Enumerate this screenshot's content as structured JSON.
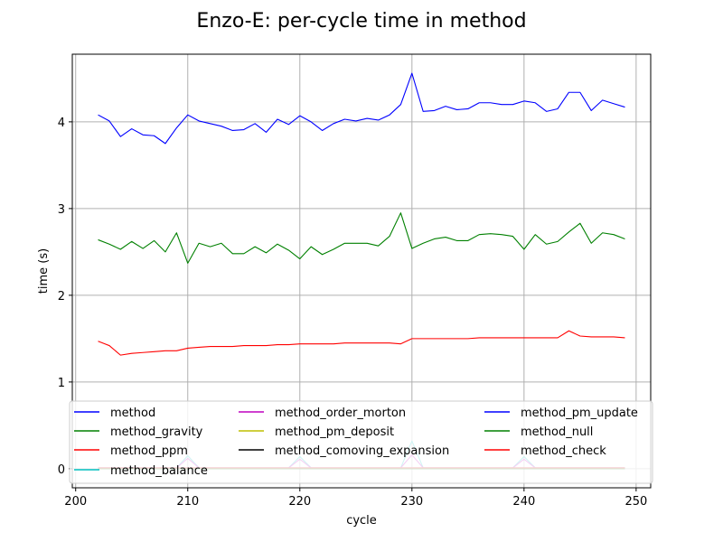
{
  "chart_data": {
    "type": "line",
    "title": "Enzo-E: per-cycle time in method",
    "xlabel": "cycle",
    "ylabel": "time (s)",
    "xlim": [
      199.7,
      251.3
    ],
    "ylim": [
      -0.22,
      4.78
    ],
    "xticks": [
      200,
      210,
      220,
      230,
      240,
      250
    ],
    "yticks": [
      0,
      1,
      2,
      3,
      4
    ],
    "grid": true,
    "legend": {
      "placement": "lower-center",
      "columns": 3
    },
    "x": [
      202,
      203,
      204,
      205,
      206,
      207,
      208,
      209,
      210,
      211,
      212,
      213,
      214,
      215,
      216,
      217,
      218,
      219,
      220,
      221,
      222,
      223,
      224,
      225,
      226,
      227,
      228,
      229,
      230,
      231,
      232,
      233,
      234,
      235,
      236,
      237,
      238,
      239,
      240,
      241,
      242,
      243,
      244,
      245,
      246,
      247,
      248,
      249
    ],
    "series": [
      {
        "name": "method",
        "color": "#0000ff",
        "values": [
          4.08,
          4.01,
          3.83,
          3.92,
          3.85,
          3.84,
          3.75,
          3.93,
          4.08,
          4.01,
          3.98,
          3.95,
          3.9,
          3.91,
          3.98,
          3.88,
          4.03,
          3.97,
          4.07,
          4.0,
          3.9,
          3.98,
          4.03,
          4.01,
          4.04,
          4.02,
          4.08,
          4.2,
          4.56,
          4.12,
          4.13,
          4.18,
          4.14,
          4.15,
          4.22,
          4.22,
          4.2,
          4.2,
          4.24,
          4.22,
          4.12,
          4.15,
          4.34,
          4.34,
          4.13,
          4.25,
          4.21,
          4.17
        ]
      },
      {
        "name": "method_gravity",
        "color": "#008000",
        "values": [
          2.64,
          2.59,
          2.53,
          2.62,
          2.54,
          2.63,
          2.5,
          2.72,
          2.37,
          2.6,
          2.56,
          2.6,
          2.48,
          2.48,
          2.56,
          2.49,
          2.59,
          2.52,
          2.42,
          2.56,
          2.47,
          2.53,
          2.6,
          2.6,
          2.6,
          2.57,
          2.68,
          2.95,
          2.54,
          2.6,
          2.65,
          2.67,
          2.63,
          2.63,
          2.7,
          2.71,
          2.7,
          2.68,
          2.53,
          2.7,
          2.59,
          2.62,
          2.73,
          2.83,
          2.6,
          2.72,
          2.7,
          2.65
        ]
      },
      {
        "name": "method_ppm",
        "color": "#ff0000",
        "values": [
          1.47,
          1.42,
          1.31,
          1.33,
          1.34,
          1.35,
          1.36,
          1.36,
          1.39,
          1.4,
          1.41,
          1.41,
          1.41,
          1.42,
          1.42,
          1.42,
          1.43,
          1.43,
          1.44,
          1.44,
          1.44,
          1.44,
          1.45,
          1.45,
          1.45,
          1.45,
          1.45,
          1.44,
          1.5,
          1.5,
          1.5,
          1.5,
          1.5,
          1.5,
          1.51,
          1.51,
          1.51,
          1.51,
          1.51,
          1.51,
          1.51,
          1.51,
          1.59,
          1.53,
          1.52,
          1.52,
          1.52,
          1.51
        ]
      },
      {
        "name": "method_balance",
        "color": "#00bfbf",
        "values": [
          0.01,
          0.01,
          0.01,
          0.01,
          0.01,
          0.01,
          0.01,
          0.01,
          0.15,
          0.01,
          0.01,
          0.01,
          0.01,
          0.01,
          0.01,
          0.01,
          0.01,
          0.01,
          0.14,
          0.01,
          0.01,
          0.01,
          0.01,
          0.01,
          0.01,
          0.01,
          0.01,
          0.01,
          0.32,
          0.01,
          0.01,
          0.01,
          0.01,
          0.01,
          0.01,
          0.01,
          0.01,
          0.01,
          0.14,
          0.01,
          0.01,
          0.01,
          0.01,
          0.01,
          0.01,
          0.01,
          0.01,
          0.01
        ]
      },
      {
        "name": "method_order_morton",
        "color": "#bf00bf",
        "values": [
          0.01,
          0.01,
          0.01,
          0.01,
          0.01,
          0.01,
          0.01,
          0.01,
          0.12,
          0.01,
          0.01,
          0.01,
          0.01,
          0.01,
          0.01,
          0.01,
          0.01,
          0.01,
          0.11,
          0.01,
          0.01,
          0.01,
          0.01,
          0.01,
          0.01,
          0.01,
          0.01,
          0.01,
          0.16,
          0.01,
          0.01,
          0.01,
          0.01,
          0.01,
          0.01,
          0.01,
          0.01,
          0.01,
          0.11,
          0.01,
          0.01,
          0.01,
          0.01,
          0.01,
          0.01,
          0.01,
          0.01,
          0.01
        ]
      },
      {
        "name": "method_pm_deposit",
        "color": "#bfbf00",
        "values": [
          0.01,
          0.01,
          0.01,
          0.01,
          0.01,
          0.01,
          0.01,
          0.01,
          0.01,
          0.01,
          0.01,
          0.01,
          0.01,
          0.01,
          0.01,
          0.01,
          0.01,
          0.01,
          0.01,
          0.01,
          0.01,
          0.01,
          0.01,
          0.01,
          0.01,
          0.01,
          0.01,
          0.01,
          0.01,
          0.01,
          0.01,
          0.01,
          0.01,
          0.01,
          0.01,
          0.01,
          0.01,
          0.01,
          0.01,
          0.01,
          0.01,
          0.01,
          0.01,
          0.01,
          0.01,
          0.01,
          0.01,
          0.01
        ]
      },
      {
        "name": "method_comoving_expansion",
        "color": "#000000",
        "values": [
          0.0,
          0.0,
          0.0,
          0.0,
          0.0,
          0.0,
          0.0,
          0.0,
          0.0,
          0.0,
          0.0,
          0.0,
          0.0,
          0.0,
          0.0,
          0.0,
          0.0,
          0.0,
          0.0,
          0.0,
          0.0,
          0.0,
          0.0,
          0.0,
          0.0,
          0.0,
          0.0,
          0.0,
          0.0,
          0.0,
          0.0,
          0.0,
          0.0,
          0.0,
          0.0,
          0.0,
          0.0,
          0.0,
          0.0,
          0.0,
          0.0,
          0.0,
          0.0,
          0.0,
          0.0,
          0.0,
          0.0,
          0.0
        ]
      },
      {
        "name": "method_pm_update",
        "color": "#0000ff",
        "values": [
          0.01,
          0.01,
          0.01,
          0.01,
          0.01,
          0.01,
          0.01,
          0.01,
          0.01,
          0.01,
          0.01,
          0.01,
          0.01,
          0.01,
          0.01,
          0.01,
          0.01,
          0.01,
          0.01,
          0.01,
          0.01,
          0.01,
          0.01,
          0.01,
          0.01,
          0.01,
          0.01,
          0.01,
          0.01,
          0.01,
          0.01,
          0.01,
          0.01,
          0.01,
          0.01,
          0.01,
          0.01,
          0.01,
          0.01,
          0.01,
          0.01,
          0.01,
          0.01,
          0.01,
          0.01,
          0.01,
          0.01,
          0.01
        ]
      },
      {
        "name": "method_null",
        "color": "#008000",
        "values": [
          0.0,
          0.0,
          0.0,
          0.0,
          0.0,
          0.0,
          0.0,
          0.0,
          0.0,
          0.0,
          0.0,
          0.0,
          0.0,
          0.0,
          0.0,
          0.0,
          0.0,
          0.0,
          0.0,
          0.0,
          0.0,
          0.0,
          0.0,
          0.0,
          0.0,
          0.0,
          0.0,
          0.0,
          0.0,
          0.0,
          0.0,
          0.0,
          0.0,
          0.0,
          0.0,
          0.0,
          0.0,
          0.0,
          0.0,
          0.0,
          0.0,
          0.0,
          0.0,
          0.0,
          0.0,
          0.0,
          0.0,
          0.0
        ]
      },
      {
        "name": "method_check",
        "color": "#ff0000",
        "values": [
          0.01,
          0.01,
          0.01,
          0.01,
          0.01,
          0.01,
          0.01,
          0.01,
          0.01,
          0.01,
          0.01,
          0.01,
          0.01,
          0.01,
          0.01,
          0.01,
          0.01,
          0.01,
          0.01,
          0.01,
          0.01,
          0.01,
          0.01,
          0.01,
          0.01,
          0.01,
          0.01,
          0.01,
          0.01,
          0.01,
          0.01,
          0.01,
          0.01,
          0.01,
          0.01,
          0.01,
          0.01,
          0.01,
          0.01,
          0.01,
          0.01,
          0.01,
          0.01,
          0.01,
          0.01,
          0.01,
          0.01,
          0.01
        ]
      }
    ]
  }
}
